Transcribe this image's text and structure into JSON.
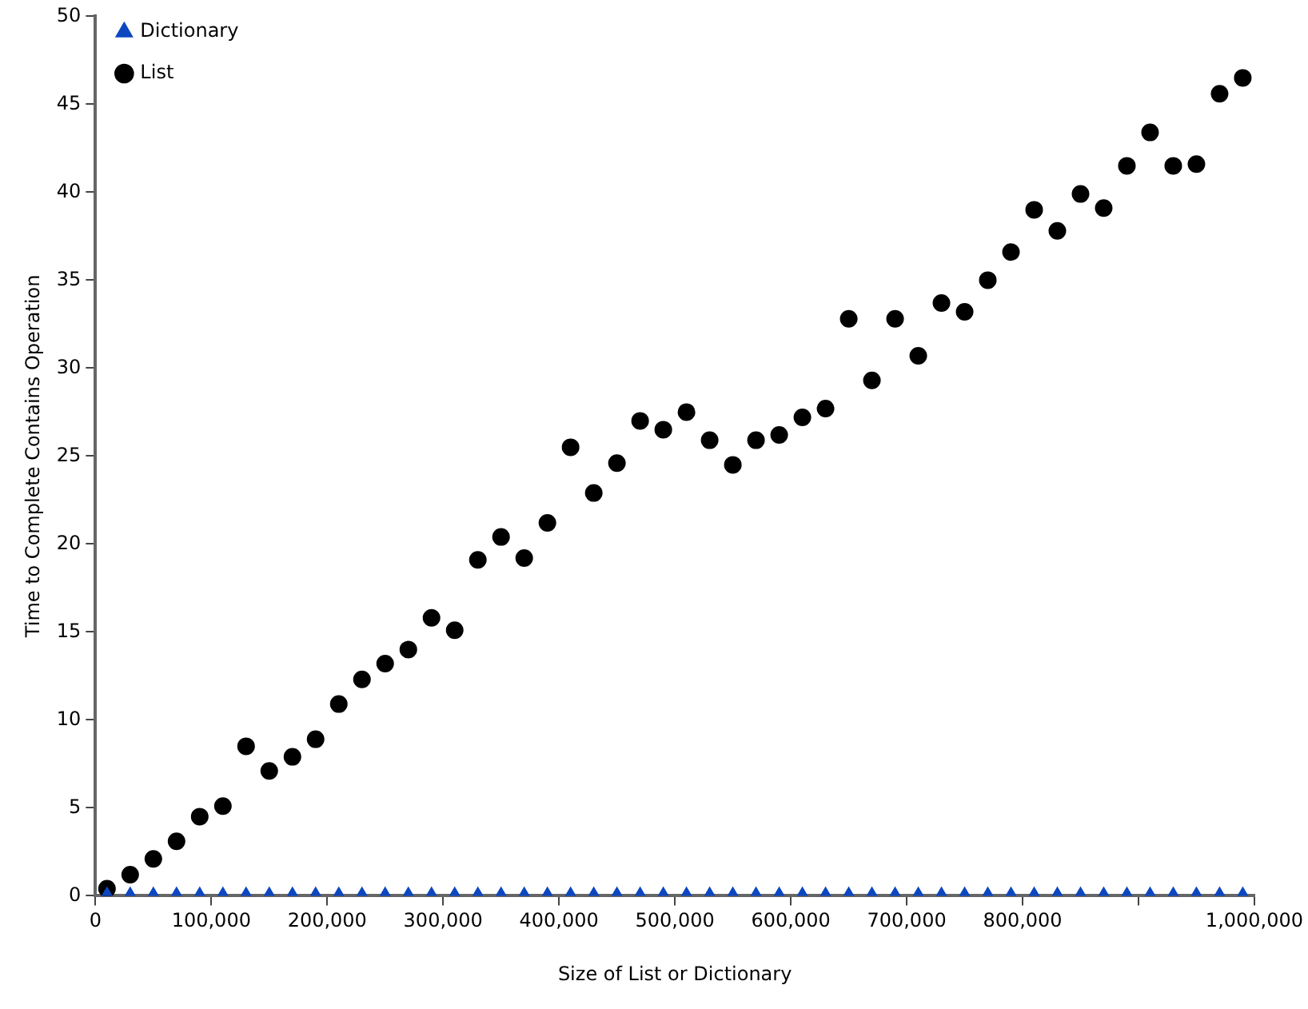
{
  "chart_data": {
    "type": "scatter",
    "xlabel": "Size of List or Dictionary",
    "ylabel": "Time to Complete Contains Operation",
    "x": [
      10000,
      30000,
      50000,
      70000,
      90000,
      110000,
      130000,
      150000,
      170000,
      190000,
      210000,
      230000,
      250000,
      270000,
      290000,
      310000,
      330000,
      350000,
      370000,
      390000,
      410000,
      430000,
      450000,
      470000,
      490000,
      510000,
      530000,
      550000,
      570000,
      590000,
      610000,
      630000,
      650000,
      670000,
      690000,
      710000,
      730000,
      750000,
      770000,
      790000,
      810000,
      830000,
      850000,
      870000,
      890000,
      910000,
      930000,
      950000,
      970000,
      990000
    ],
    "series": [
      {
        "name": "Dictionary",
        "color": "#0d47c0",
        "marker": "triangle",
        "values": [
          0,
          0,
          0,
          0,
          0,
          0,
          0,
          0,
          0,
          0,
          0,
          0,
          0,
          0,
          0,
          0,
          0,
          0,
          0,
          0,
          0,
          0,
          0,
          0,
          0,
          0,
          0,
          0,
          0,
          0,
          0,
          0,
          0,
          0,
          0,
          0,
          0,
          0,
          0,
          0,
          0,
          0,
          0,
          0,
          0,
          0,
          0,
          0,
          0,
          0
        ]
      },
      {
        "name": "List",
        "color": "#000000",
        "marker": "circle",
        "values": [
          0.4,
          1.2,
          2.1,
          3.1,
          4.5,
          5.1,
          8.5,
          7.1,
          7.9,
          8.9,
          10.9,
          12.3,
          13.2,
          14.0,
          15.8,
          15.1,
          19.1,
          20.4,
          19.2,
          21.2,
          25.5,
          22.9,
          24.6,
          27.0,
          26.5,
          27.5,
          25.9,
          24.5,
          25.9,
          26.2,
          27.2,
          27.7,
          32.8,
          29.3,
          32.8,
          30.7,
          33.7,
          33.2,
          35.0,
          36.6,
          39.0,
          37.8,
          39.9,
          39.1,
          41.5,
          43.4,
          41.5,
          41.6,
          45.6,
          46.5
        ]
      }
    ],
    "xlim": [
      0,
      1000000
    ],
    "xticks": [
      0,
      {
        "value": 100000,
        "label": "100,000"
      },
      {
        "value": 200000,
        "label": "200,000"
      },
      {
        "value": 300000,
        "label": "300,000"
      },
      {
        "value": 400000,
        "label": "400,000"
      },
      {
        "value": 500000,
        "label": "500,000"
      },
      {
        "value": 600000,
        "label": "600,000"
      },
      {
        "value": 700000,
        "label": "700,000"
      },
      {
        "value": 800000,
        "label": "800,000"
      },
      {
        "value": 900000,
        "label": null
      },
      {
        "value": 1000000,
        "label": "1,000,000"
      }
    ],
    "ylim": [
      0,
      50
    ],
    "yticks": [
      0,
      5,
      10,
      15,
      20,
      25,
      30,
      35,
      40,
      45,
      50
    ],
    "grid": false,
    "legend": "top left"
  }
}
